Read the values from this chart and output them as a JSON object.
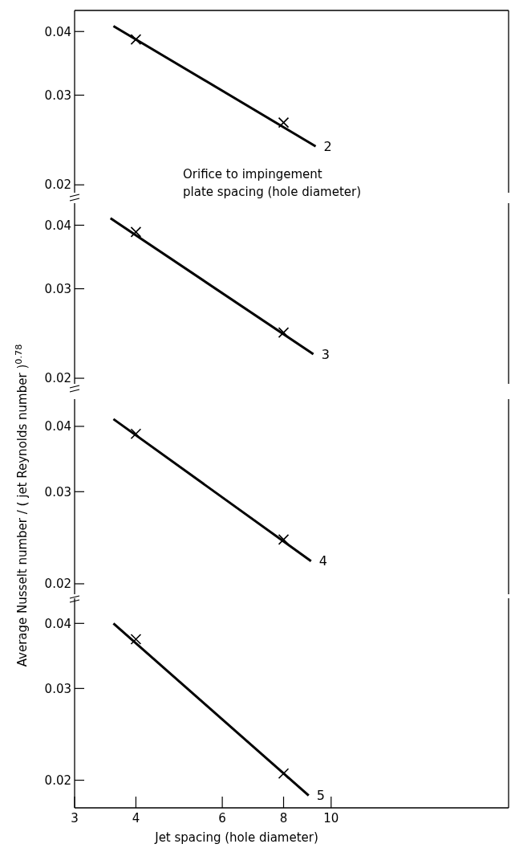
{
  "chart_data": [
    {
      "type": "line",
      "xlim": [
        3,
        23
      ],
      "ylim": [
        0.0193,
        0.044
      ],
      "xticks": [
        3,
        4,
        6,
        8,
        10
      ],
      "yticks": [
        0.02,
        0.03,
        0.04
      ],
      "log": "xy",
      "tick_labels": "y",
      "annotations": [
        "Orifice to impingement\nplate spacing (hole diameter)",
        {
          "text": "2",
          "x": 9.3,
          "y": 0.0238
        }
      ],
      "series": [
        {
          "type": "line",
          "color": "#000000",
          "marker": "none",
          "line_style": "solid",
          "x": [
            3.6,
            9.3
          ],
          "values": [
            0.041,
            0.0238
          ]
        },
        {
          "type": "scatter",
          "color": "#000000",
          "marker": "cross",
          "x": [
            4,
            8
          ],
          "values": [
            0.0386,
            0.0265
          ]
        }
      ]
    },
    {
      "type": "line",
      "xlim": [
        3,
        23
      ],
      "ylim": [
        0.0195,
        0.0442
      ],
      "xticks": [
        3,
        4,
        6,
        8,
        10
      ],
      "yticks": [
        0.02,
        0.03,
        0.04
      ],
      "log": "xy",
      "tick_labels": "y",
      "annotations": [
        {
          "text": "3",
          "x": 9.2,
          "y": 0.0223
        }
      ],
      "series": [
        {
          "type": "line",
          "color": "#000000",
          "marker": "none",
          "line_style": "solid",
          "x": [
            3.55,
            9.2
          ],
          "values": [
            0.0413,
            0.0223
          ]
        },
        {
          "type": "scatter",
          "color": "#000000",
          "marker": "cross",
          "x": [
            4,
            8
          ],
          "values": [
            0.0388,
            0.0246
          ]
        }
      ]
    },
    {
      "type": "line",
      "xlim": [
        3,
        23
      ],
      "ylim": [
        0.0191,
        0.0451
      ],
      "xticks": [
        3,
        4,
        6,
        8,
        10
      ],
      "yticks": [
        0.02,
        0.03,
        0.04
      ],
      "log": "xy",
      "tick_labels": "y",
      "ylabel": "Average Nusselt number / ( jet Reynolds number )$^{0.78}$",
      "annotations": [
        {
          "text": "4",
          "x": 9.1,
          "y": 0.0221
        }
      ],
      "series": [
        {
          "type": "line",
          "color": "#000000",
          "marker": "none",
          "line_style": "solid",
          "x": [
            3.6,
            9.1
          ],
          "values": [
            0.0413,
            0.0221
          ]
        },
        {
          "type": "scatter",
          "color": "#000000",
          "marker": "cross",
          "x": [
            4,
            8
          ],
          "values": [
            0.0387,
            0.0243
          ]
        }
      ]
    },
    {
      "type": "line",
      "xlim": [
        3,
        23
      ],
      "ylim": [
        0.0177,
        0.0447
      ],
      "xticks": [
        3,
        4,
        6,
        8,
        10
      ],
      "yticks": [
        0.02,
        0.03,
        0.04
      ],
      "log": "xy",
      "xlabel": "Jet spacing (hole diameter)",
      "annotations": [
        {
          "text": "5",
          "x": 9.0,
          "y": 0.0187
        }
      ],
      "series": [
        {
          "type": "line",
          "color": "#000000",
          "marker": "none",
          "line_style": "solid",
          "x": [
            3.6,
            9.0
          ],
          "values": [
            0.04,
            0.0187
          ]
        },
        {
          "type": "scatter",
          "color": "#000000",
          "marker": "cross",
          "x": [
            4,
            8
          ],
          "values": [
            0.0373,
            0.0206
          ]
        }
      ]
    }
  ]
}
